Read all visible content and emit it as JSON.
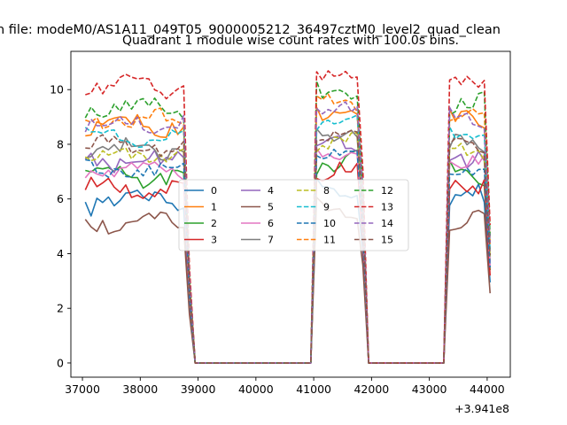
{
  "chart_data": {
    "type": "line",
    "suptitle": "n file: modeM0/AS1A11_049T05_9000005212_36497cztM0_level2_quad_clean",
    "title": "Quadrant 1 module wise count rates with 100.0s bins.",
    "xlabel": "",
    "ylabel": "",
    "x_offset_label": "+3.941e8",
    "xlim": [
      36800,
      44400
    ],
    "ylim": [
      -0.52,
      11.4
    ],
    "xticks": [
      37000,
      38000,
      39000,
      40000,
      41000,
      42000,
      43000,
      44000
    ],
    "xtick_labels": [
      "37000",
      "38000",
      "39000",
      "40000",
      "41000",
      "42000",
      "43000",
      "44000"
    ],
    "yticks": [
      0,
      2,
      4,
      6,
      8,
      10
    ],
    "ytick_labels": [
      "0",
      "2",
      "4",
      "6",
      "8",
      "10"
    ],
    "legend_location": "center",
    "legend_columns": 4,
    "segments": [
      {
        "start": 37050,
        "end": 38750
      },
      {
        "start": 41000,
        "end": 41750
      },
      {
        "start": 43350,
        "end": 43950
      }
    ],
    "series": [
      {
        "name": "0",
        "color": "#1f77b4",
        "style": "solid",
        "level": 5.9,
        "amplitude": 0.35
      },
      {
        "name": "1",
        "color": "#ff7f0e",
        "style": "solid",
        "level": 8.7,
        "amplitude": 0.3
      },
      {
        "name": "2",
        "color": "#2ca02c",
        "style": "solid",
        "level": 6.8,
        "amplitude": 0.3
      },
      {
        "name": "3",
        "color": "#d62728",
        "style": "solid",
        "level": 6.4,
        "amplitude": 0.3
      },
      {
        "name": "4",
        "color": "#9467bd",
        "style": "solid",
        "level": 7.4,
        "amplitude": 0.3
      },
      {
        "name": "5",
        "color": "#8c564b",
        "style": "solid",
        "level": 5.1,
        "amplitude": 0.3
      },
      {
        "name": "6",
        "color": "#e377c2",
        "style": "solid",
        "level": 7.1,
        "amplitude": 0.25
      },
      {
        "name": "7",
        "color": "#7f7f7f",
        "style": "solid",
        "level": 7.8,
        "amplitude": 0.25
      },
      {
        "name": "8",
        "color": "#bcbd22",
        "style": "dashed",
        "level": 7.6,
        "amplitude": 0.25
      },
      {
        "name": "9",
        "color": "#17becf",
        "style": "dashed",
        "level": 8.3,
        "amplitude": 0.25
      },
      {
        "name": "10",
        "color": "#1f77b4",
        "style": "dashed",
        "level": 7.0,
        "amplitude": 0.25
      },
      {
        "name": "11",
        "color": "#ff7f0e",
        "style": "dashed",
        "level": 8.9,
        "amplitude": 0.25
      },
      {
        "name": "12",
        "color": "#2ca02c",
        "style": "dashed",
        "level": 9.3,
        "amplitude": 0.3
      },
      {
        "name": "13",
        "color": "#d62728",
        "style": "dashed",
        "level": 10.1,
        "amplitude": 0.3
      },
      {
        "name": "14",
        "color": "#9467bd",
        "style": "dashed",
        "level": 8.8,
        "amplitude": 0.25
      },
      {
        "name": "15",
        "color": "#8c564b",
        "style": "dashed",
        "level": 7.9,
        "amplitude": 0.25
      }
    ]
  }
}
